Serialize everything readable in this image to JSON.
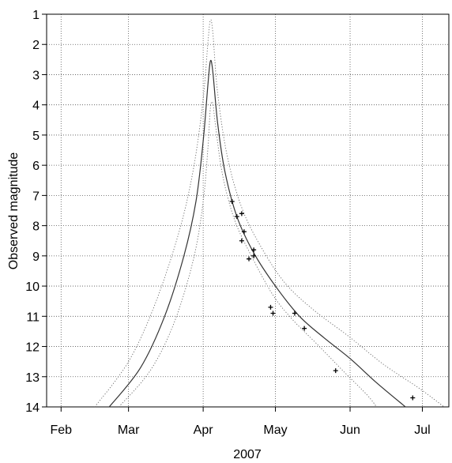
{
  "chart_data": {
    "type": "line",
    "title": "",
    "xlabel": "2007",
    "ylabel": "Observed magnitude",
    "y_inverted": true,
    "ylim": [
      1,
      14
    ],
    "xlim": [
      "2007-01-26",
      "2007-07-12"
    ],
    "yticks": [
      1,
      2,
      3,
      4,
      5,
      6,
      7,
      8,
      9,
      10,
      11,
      12,
      13,
      14
    ],
    "xticks": [
      {
        "date": "2007-02-01",
        "label": "Feb"
      },
      {
        "date": "2007-03-01",
        "label": "Mar"
      },
      {
        "date": "2007-04-01",
        "label": "Apr"
      },
      {
        "date": "2007-05-01",
        "label": "May"
      },
      {
        "date": "2007-06-01",
        "label": "Jun"
      },
      {
        "date": "2007-07-01",
        "label": "Jul"
      }
    ],
    "grid": true,
    "series": [
      {
        "style": "solid",
        "points": [
          [
            "2007-02-21",
            14.0
          ],
          [
            "2007-03-06",
            12.7
          ],
          [
            "2007-03-16",
            11.0
          ],
          [
            "2007-03-24",
            9.0
          ],
          [
            "2007-03-29",
            7.2
          ],
          [
            "2007-04-01",
            5.2
          ],
          [
            "2007-04-03",
            3.3
          ],
          [
            "2007-04-04",
            2.55
          ],
          [
            "2007-04-05",
            2.9
          ],
          [
            "2007-04-07",
            4.6
          ],
          [
            "2007-04-10",
            6.2
          ],
          [
            "2007-04-15",
            7.7
          ],
          [
            "2007-04-22",
            8.9
          ],
          [
            "2007-05-01",
            10.0
          ],
          [
            "2007-05-11",
            11.0
          ],
          [
            "2007-05-21",
            11.7
          ],
          [
            "2007-06-01",
            12.4
          ],
          [
            "2007-06-12",
            13.2
          ],
          [
            "2007-06-24",
            14.0
          ]
        ]
      },
      {
        "style": "dotted",
        "points": [
          [
            "2007-02-15",
            14.0
          ],
          [
            "2007-03-01",
            12.5
          ],
          [
            "2007-03-12",
            10.6
          ],
          [
            "2007-03-22",
            8.2
          ],
          [
            "2007-03-28",
            6.1
          ],
          [
            "2007-04-01",
            3.8
          ],
          [
            "2007-04-03",
            1.9
          ],
          [
            "2007-04-04",
            1.2
          ],
          [
            "2007-04-05",
            1.6
          ],
          [
            "2007-04-07",
            3.6
          ],
          [
            "2007-04-11",
            5.7
          ],
          [
            "2007-04-17",
            7.4
          ],
          [
            "2007-04-25",
            8.7
          ],
          [
            "2007-05-05",
            9.9
          ],
          [
            "2007-05-17",
            10.8
          ],
          [
            "2007-06-01",
            11.7
          ],
          [
            "2007-06-15",
            12.6
          ],
          [
            "2007-06-30",
            13.4
          ],
          [
            "2007-07-10",
            14.0
          ]
        ]
      },
      {
        "style": "dotted",
        "points": [
          [
            "2007-02-25",
            14.0
          ],
          [
            "2007-03-10",
            12.8
          ],
          [
            "2007-03-20",
            11.2
          ],
          [
            "2007-03-28",
            9.1
          ],
          [
            "2007-04-01",
            7.2
          ],
          [
            "2007-04-03",
            5.4
          ],
          [
            "2007-04-04",
            4.1
          ],
          [
            "2007-04-05",
            3.95
          ],
          [
            "2007-04-06",
            4.6
          ],
          [
            "2007-04-09",
            6.3
          ],
          [
            "2007-04-14",
            7.8
          ],
          [
            "2007-04-21",
            9.0
          ],
          [
            "2007-04-30",
            10.3
          ],
          [
            "2007-05-08",
            11.1
          ],
          [
            "2007-05-18",
            11.9
          ],
          [
            "2007-05-29",
            12.8
          ],
          [
            "2007-06-08",
            13.6
          ],
          [
            "2007-06-12",
            14.0
          ]
        ]
      }
    ],
    "observations": [
      [
        "2007-04-13",
        7.2
      ],
      [
        "2007-04-15",
        7.7
      ],
      [
        "2007-04-17",
        7.6
      ],
      [
        "2007-04-17",
        8.5
      ],
      [
        "2007-04-18",
        8.2
      ],
      [
        "2007-04-20",
        9.1
      ],
      [
        "2007-04-22",
        8.8
      ],
      [
        "2007-04-22",
        9.0
      ],
      [
        "2007-04-29",
        10.7
      ],
      [
        "2007-04-30",
        10.9
      ],
      [
        "2007-05-09",
        10.9
      ],
      [
        "2007-05-13",
        11.4
      ],
      [
        "2007-05-26",
        12.8
      ],
      [
        "2007-06-27",
        13.7
      ]
    ]
  }
}
